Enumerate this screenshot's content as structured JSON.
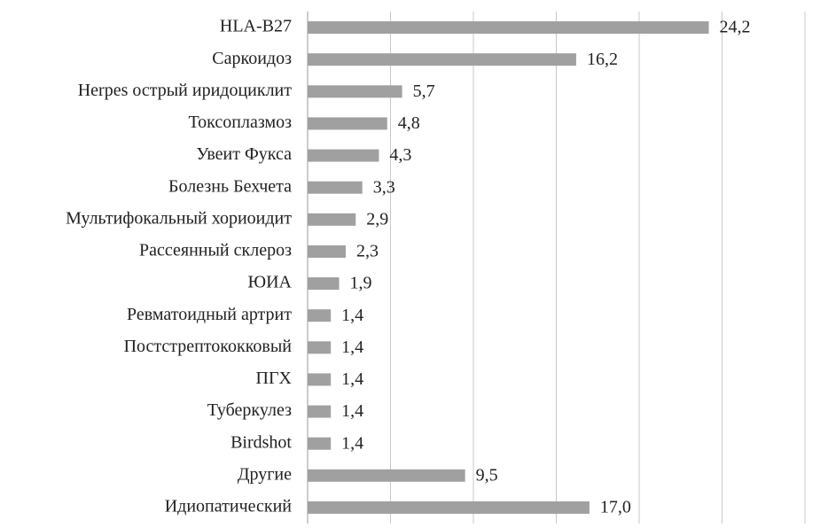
{
  "chart_data": {
    "type": "bar",
    "orientation": "horizontal",
    "categories": [
      "HLA-B27",
      "Саркоидоз",
      "Herpes острый иридоциклит",
      "Токсоплазмоз",
      "Увеит Фукса",
      "Болезнь Бехчета",
      "Мультифокальный хориоидит",
      "Рассеянный склероз",
      "ЮИА",
      "Ревматоидный артрит",
      "Постстрептококковый",
      "ПГХ",
      "Туберкулез",
      "Birdshot",
      "Другие",
      "Идиопатический"
    ],
    "values": [
      24.2,
      16.2,
      5.7,
      4.8,
      4.3,
      3.3,
      2.9,
      2.3,
      1.9,
      1.4,
      1.4,
      1.4,
      1.4,
      1.4,
      9.5,
      17.0
    ],
    "value_labels": [
      "24,2",
      "16,2",
      "5,7",
      "4,8",
      "4,3",
      "3,3",
      "2,9",
      "2,3",
      "1,9",
      "1,4",
      "1,4",
      "1,4",
      "1,4",
      "1,4",
      "9,5",
      "17,0"
    ],
    "color": "#a0a0a0",
    "xlim": [
      0,
      30
    ],
    "xticks": [
      0,
      5,
      10,
      15,
      20,
      25,
      30
    ],
    "grid": true
  }
}
